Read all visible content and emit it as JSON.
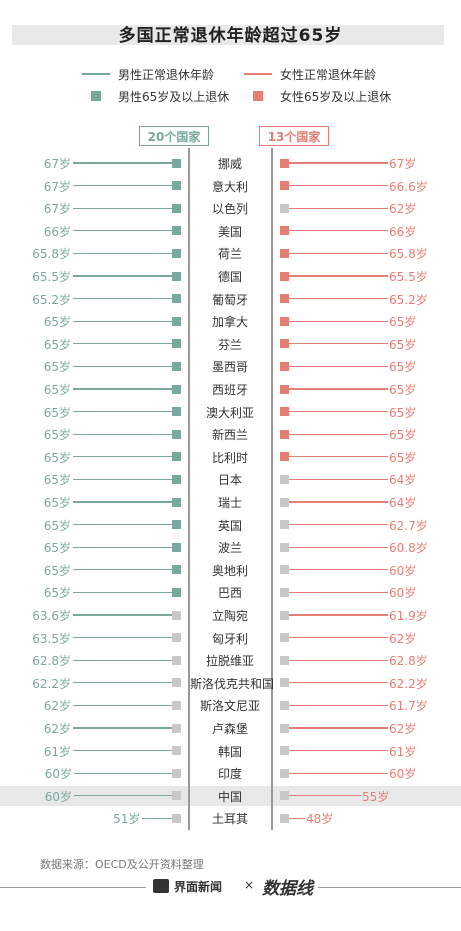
{
  "title": "多国正常退休年龄超过65岁",
  "legend": {
    "male_line": "男性正常退休年龄",
    "female_line": "女性正常退休年龄",
    "male_sq": "男性65岁及以上退休",
    "female_sq": "女性65岁及以上退休"
  },
  "counts": {
    "male": "20个国家",
    "female": "13个国家"
  },
  "colors": {
    "male": "#7aa89e",
    "female": "#e47f76",
    "grey": "#c8c8c8",
    "center": "#999999",
    "highlight_row": "#e8e8e8"
  },
  "source": "数据来源：OECD及公开资料整理",
  "footer": {
    "brand": "界面新闻",
    "separator": "×",
    "brand2": "数据线"
  },
  "chart_data": {
    "type": "bar",
    "categories": [
      "挪威",
      "意大利",
      "以色列",
      "美国",
      "荷兰",
      "德国",
      "葡萄牙",
      "加拿大",
      "芬兰",
      "墨西哥",
      "西班牙",
      "澳大利亚",
      "新西兰",
      "比利时",
      "日本",
      "瑞士",
      "英国",
      "波兰",
      "奥地利",
      "巴西",
      "立陶宛",
      "匈牙利",
      "拉脱维亚",
      "斯洛伐克共和国",
      "斯洛文尼亚",
      "卢森堡",
      "韩国",
      "印度",
      "中国",
      "土耳其"
    ],
    "series": [
      {
        "name": "男性正常退休年龄",
        "values": [
          67,
          67,
          67,
          66,
          65.8,
          65.5,
          65.2,
          65,
          65,
          65,
          65,
          65,
          65,
          65,
          65,
          65,
          65,
          65,
          65,
          65,
          63.6,
          63.5,
          62.8,
          62.2,
          62,
          62,
          61,
          60,
          60,
          51
        ],
        "labels": [
          "67岁",
          "67岁",
          "67岁",
          "66岁",
          "65.8岁",
          "65.5岁",
          "65.2岁",
          "65岁",
          "65岁",
          "65岁",
          "65岁",
          "65岁",
          "65岁",
          "65岁",
          "65岁",
          "65岁",
          "65岁",
          "65岁",
          "65岁",
          "65岁",
          "63.6岁",
          "63.5岁",
          "62.8岁",
          "62.2岁",
          "62岁",
          "62岁",
          "61岁",
          "60岁",
          "60岁",
          "51岁"
        ]
      },
      {
        "name": "女性正常退休年龄",
        "values": [
          67,
          66.6,
          62,
          66,
          65.8,
          65.5,
          65.2,
          65,
          65,
          65,
          65,
          65,
          65,
          65,
          64,
          64,
          62.7,
          60.8,
          60,
          60,
          61.9,
          62,
          62.8,
          62.2,
          61.7,
          62,
          61,
          60,
          55,
          48
        ],
        "labels": [
          "67岁",
          "66.6岁",
          "62岁",
          "66岁",
          "65.8岁",
          "65.5岁",
          "65.2岁",
          "65岁",
          "65岁",
          "65岁",
          "65岁",
          "65岁",
          "65岁",
          "65岁",
          "64岁",
          "64岁",
          "62.7岁",
          "60.8岁",
          "60岁",
          "60岁",
          "61.9岁",
          "62岁",
          "62.8岁",
          "62.2岁",
          "61.7岁",
          "62岁",
          "61岁",
          "60岁",
          "55岁",
          "48岁"
        ]
      }
    ],
    "highlight": "中国"
  }
}
